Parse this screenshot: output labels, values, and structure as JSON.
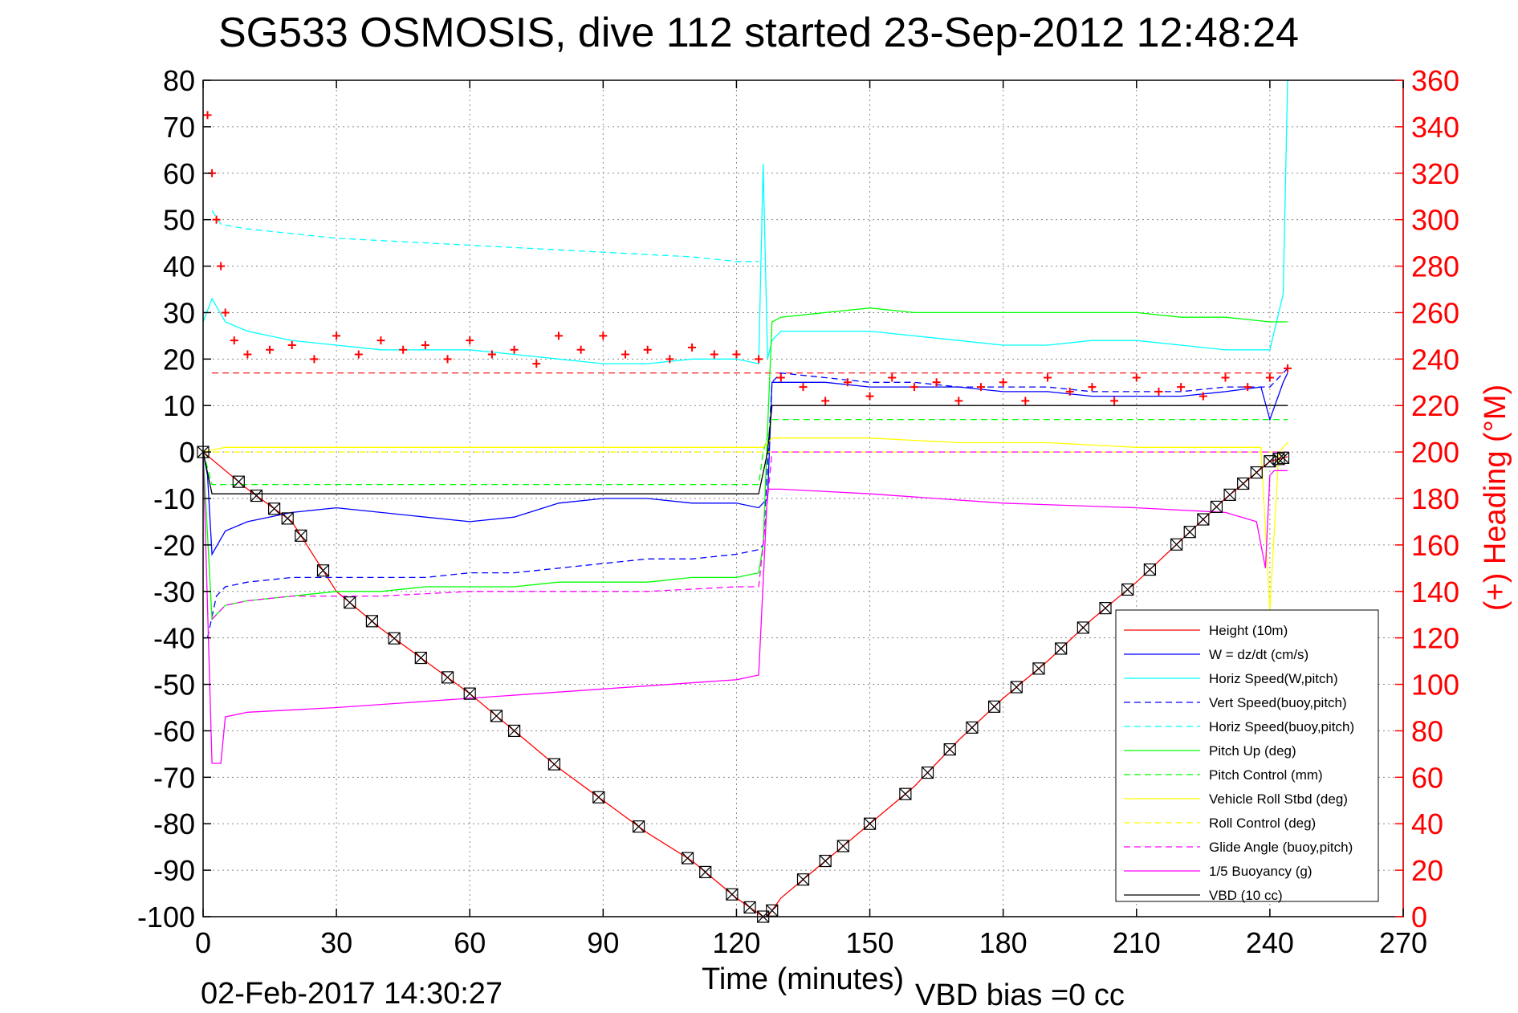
{
  "chart_data": {
    "type": "line",
    "title": "SG533 OSMOSIS, dive 112 started 23-Sep-2012 12:48:24",
    "xlabel": "Time (minutes)",
    "ylabel": "",
    "ylabel_right": "(+) Heading (°M)",
    "xlim": [
      0,
      270
    ],
    "ylim": [
      -100,
      80
    ],
    "ylim_right": [
      0,
      360
    ],
    "x_ticks": [
      0,
      30,
      60,
      90,
      120,
      150,
      180,
      210,
      240,
      270
    ],
    "y_ticks": [
      -100,
      -90,
      -80,
      -70,
      -60,
      -50,
      -40,
      -30,
      -20,
      -10,
      0,
      10,
      20,
      30,
      40,
      50,
      60,
      70,
      80
    ],
    "y_ticks_right": [
      0,
      20,
      40,
      60,
      80,
      100,
      120,
      140,
      160,
      180,
      200,
      220,
      240,
      260,
      280,
      300,
      320,
      340,
      360
    ],
    "grid": true,
    "legend_position": "bottom-right",
    "footer_left": "02-Feb-2017 14:30:27",
    "footer_right": "VBD bias =0 cc",
    "series": [
      {
        "name": "Height (10m)",
        "color": "#ff0000",
        "style": "solid",
        "x": [
          0,
          10,
          20,
          30,
          40,
          50,
          60,
          70,
          80,
          90,
          100,
          110,
          120,
          126,
          127,
          130,
          140,
          150,
          160,
          170,
          180,
          190,
          200,
          210,
          220,
          230,
          240,
          244
        ],
        "y": [
          0,
          -8,
          -15,
          -30,
          -38,
          -45,
          -52,
          -60,
          -68,
          -75,
          -82,
          -88,
          -96,
          -100,
          -100,
          -96,
          -88,
          -80,
          -72,
          -62,
          -53,
          -45,
          -36,
          -28,
          -19,
          -10,
          -2,
          -1
        ]
      },
      {
        "name": "W = dz/dt (cm/s)",
        "color": "#0000ff",
        "style": "solid",
        "x": [
          0,
          1,
          2,
          5,
          10,
          20,
          30,
          40,
          50,
          60,
          70,
          80,
          90,
          100,
          110,
          120,
          125,
          127,
          128,
          130,
          140,
          150,
          160,
          170,
          180,
          190,
          200,
          210,
          220,
          230,
          238,
          240,
          243,
          244
        ],
        "y": [
          0,
          -5,
          -22,
          -17,
          -15,
          -13,
          -12,
          -13,
          -14,
          -15,
          -14,
          -11,
          -10,
          -10,
          -11,
          -11,
          -12,
          -10,
          15,
          15,
          15,
          14,
          14,
          14,
          13,
          13,
          12,
          12,
          12,
          13,
          14,
          7,
          15,
          17
        ]
      },
      {
        "name": "Horiz Speed(W,pitch)",
        "color": "#00ffff",
        "style": "solid",
        "x": [
          0,
          2,
          5,
          10,
          20,
          30,
          40,
          50,
          60,
          70,
          80,
          90,
          100,
          110,
          120,
          125,
          126,
          127,
          128,
          130,
          140,
          150,
          160,
          170,
          180,
          190,
          200,
          210,
          220,
          230,
          240,
          243,
          244
        ],
        "y": [
          28,
          33,
          28,
          26,
          24,
          23,
          22,
          22,
          22,
          21,
          20,
          19,
          19,
          20,
          20,
          19,
          62,
          20,
          24,
          26,
          26,
          26,
          25,
          24,
          23,
          23,
          24,
          24,
          23,
          22,
          22,
          34,
          80
        ]
      },
      {
        "name": "Vert Speed(buoy,pitch)",
        "color": "#0000ff",
        "style": "dashed",
        "x": [
          1,
          3,
          5,
          10,
          20,
          30,
          40,
          50,
          60,
          70,
          80,
          90,
          100,
          110,
          120,
          125,
          126,
          128,
          130,
          140,
          150,
          160,
          170,
          180,
          190,
          200,
          210,
          220,
          230,
          240,
          244
        ],
        "y": [
          -40,
          -31,
          -29,
          -28,
          -27,
          -27,
          -27,
          -27,
          -26,
          -26,
          -25,
          -24,
          -23,
          -23,
          -22,
          -21,
          -20,
          15,
          17,
          16,
          15,
          15,
          14,
          14,
          14,
          13,
          13,
          13,
          14,
          14,
          18
        ]
      },
      {
        "name": "Horiz Speed(buoy,pitch)",
        "color": "#00ffff",
        "style": "dashed",
        "x": [
          2,
          4,
          10,
          20,
          30,
          40,
          50,
          60,
          70,
          80,
          90,
          100,
          110,
          120,
          125
        ],
        "y": [
          52,
          49,
          48,
          47,
          46,
          45.5,
          45,
          44.5,
          44,
          43.5,
          43,
          42.5,
          42,
          41,
          41
        ]
      },
      {
        "name": "Pitch Up (deg)",
        "color": "#00ff00",
        "style": "solid",
        "x": [
          0,
          2,
          5,
          10,
          20,
          30,
          40,
          50,
          60,
          70,
          80,
          90,
          100,
          110,
          120,
          125,
          126,
          127,
          128,
          130,
          140,
          150,
          160,
          170,
          180,
          190,
          200,
          210,
          220,
          230,
          240,
          244
        ],
        "y": [
          0,
          -36,
          -33,
          -32,
          -31,
          -30,
          -30,
          -29,
          -29,
          -29,
          -28,
          -28,
          -28,
          -27,
          -27,
          -26,
          -20,
          5,
          28,
          29,
          30,
          31,
          30,
          30,
          30,
          30,
          30,
          30,
          29,
          29,
          28,
          28
        ]
      },
      {
        "name": "Pitch Control (mm)",
        "color": "#00ff00",
        "style": "dashed",
        "x": [
          0,
          2,
          5,
          60,
          125,
          126,
          128,
          244
        ],
        "y": [
          0,
          -7,
          -7,
          -7,
          -7,
          0,
          7,
          7
        ]
      },
      {
        "name": "Vehicle Roll Stbd (deg)",
        "color": "#ffff00",
        "style": "solid",
        "x": [
          0,
          5,
          20,
          40,
          60,
          80,
          100,
          120,
          126,
          128,
          150,
          170,
          190,
          210,
          230,
          238,
          240,
          242,
          244
        ],
        "y": [
          0,
          1,
          1,
          1,
          1,
          1,
          1,
          1,
          1,
          3,
          3,
          2,
          2,
          1,
          1,
          1,
          -34,
          0,
          2
        ]
      },
      {
        "name": "Roll Control (deg)",
        "color": "#ffff00",
        "style": "dashed",
        "x": [
          0,
          244
        ],
        "y": [
          0,
          0
        ]
      },
      {
        "name": "Glide Angle (buoy,pitch)",
        "color": "#ff00ff",
        "style": "dashed",
        "x": [
          2,
          5,
          10,
          20,
          40,
          60,
          80,
          100,
          120,
          125,
          126,
          128,
          244
        ],
        "y": [
          -36,
          -33,
          -32,
          -31,
          -31,
          -30,
          -30,
          -30,
          -29,
          -29,
          -20,
          0,
          0
        ]
      },
      {
        "name": "1/5 Buoyancy (g)",
        "color": "#ff00ff",
        "style": "solid",
        "x": [
          0,
          2,
          4,
          5,
          10,
          30,
          60,
          90,
          120,
          125,
          126,
          127,
          130,
          150,
          180,
          210,
          230,
          237,
          239,
          240,
          241,
          244
        ],
        "y": [
          0,
          -67,
          -67,
          -57,
          -56,
          -55,
          -53,
          -51,
          -49,
          -48,
          -28,
          -8,
          -8,
          -9,
          -11,
          -12,
          -13,
          -15,
          -25,
          -5,
          -4,
          -4
        ]
      },
      {
        "name": "VBD (10 cc)",
        "color": "#000000",
        "style": "solid",
        "x": [
          0,
          2,
          60,
          125,
          127,
          128,
          244
        ],
        "y": [
          0,
          -9,
          -9,
          -9,
          0,
          10,
          10
        ]
      }
    ],
    "heading": {
      "name": "(+) Heading (°M)",
      "color": "#ff0000",
      "marker": "+",
      "x": [
        1,
        2,
        3,
        4,
        5,
        7,
        10,
        15,
        20,
        25,
        30,
        35,
        40,
        45,
        50,
        55,
        60,
        65,
        70,
        75,
        80,
        85,
        90,
        95,
        100,
        105,
        110,
        115,
        120,
        125,
        130,
        135,
        140,
        145,
        150,
        155,
        160,
        165,
        170,
        175,
        180,
        185,
        190,
        195,
        200,
        205,
        210,
        215,
        220,
        225,
        230,
        235,
        240,
        244
      ],
      "y": [
        345,
        320,
        300,
        280,
        260,
        248,
        242,
        244,
        246,
        240,
        250,
        242,
        248,
        244,
        246,
        240,
        248,
        242,
        244,
        238,
        250,
        244,
        250,
        242,
        244,
        240,
        245,
        242,
        242,
        240,
        232,
        228,
        222,
        230,
        224,
        232,
        228,
        230,
        222,
        228,
        230,
        222,
        232,
        226,
        228,
        222,
        232,
        226,
        228,
        224,
        232,
        228,
        232,
        236
      ]
    },
    "ref_line": {
      "color": "#ff0000",
      "style": "dashed",
      "y": 17
    },
    "descent_markers": [
      0,
      8,
      12,
      16,
      19,
      22,
      27,
      33,
      38,
      43,
      49,
      55,
      60,
      66,
      70,
      79,
      89,
      98,
      109,
      113,
      119,
      123,
      126,
      128,
      135,
      140,
      144,
      150,
      158,
      163,
      168,
      173,
      178,
      183,
      188,
      193,
      198,
      203,
      208,
      213,
      219,
      222,
      225,
      228,
      231,
      234,
      237,
      240,
      242,
      243
    ]
  }
}
